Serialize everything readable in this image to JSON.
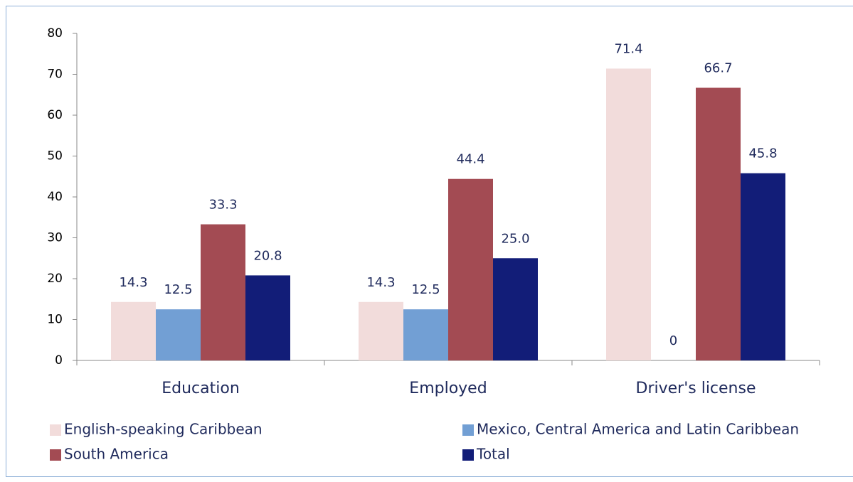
{
  "chart_data": {
    "type": "bar",
    "categories": [
      "Education",
      "Employed",
      "Driver's license"
    ],
    "series": [
      {
        "name": "English-speaking Caribbean",
        "color": "#f2dcdb",
        "values": [
          14.3,
          14.3,
          71.4
        ],
        "value_labels": [
          "14.3",
          "14.3",
          "71.4"
        ]
      },
      {
        "name": "Mexico, Central America and Latin Caribbean",
        "color": "#729fd4",
        "values": [
          12.5,
          12.5,
          0
        ],
        "value_labels": [
          "12.5",
          "12.5",
          "0"
        ]
      },
      {
        "name": "South America",
        "color": "#a34b53",
        "values": [
          33.3,
          44.4,
          66.7
        ],
        "value_labels": [
          "33.3",
          "44.4",
          "66.7"
        ]
      },
      {
        "name": "Total",
        "color": "#121d78",
        "values": [
          20.8,
          25,
          45.8
        ],
        "value_labels": [
          "20.8",
          "25.0",
          "45.8"
        ]
      }
    ],
    "ylim": [
      0,
      80
    ],
    "yticks": [
      0,
      10,
      20,
      30,
      40,
      50,
      60,
      70,
      80
    ],
    "grid": false,
    "legend": "bottom"
  }
}
